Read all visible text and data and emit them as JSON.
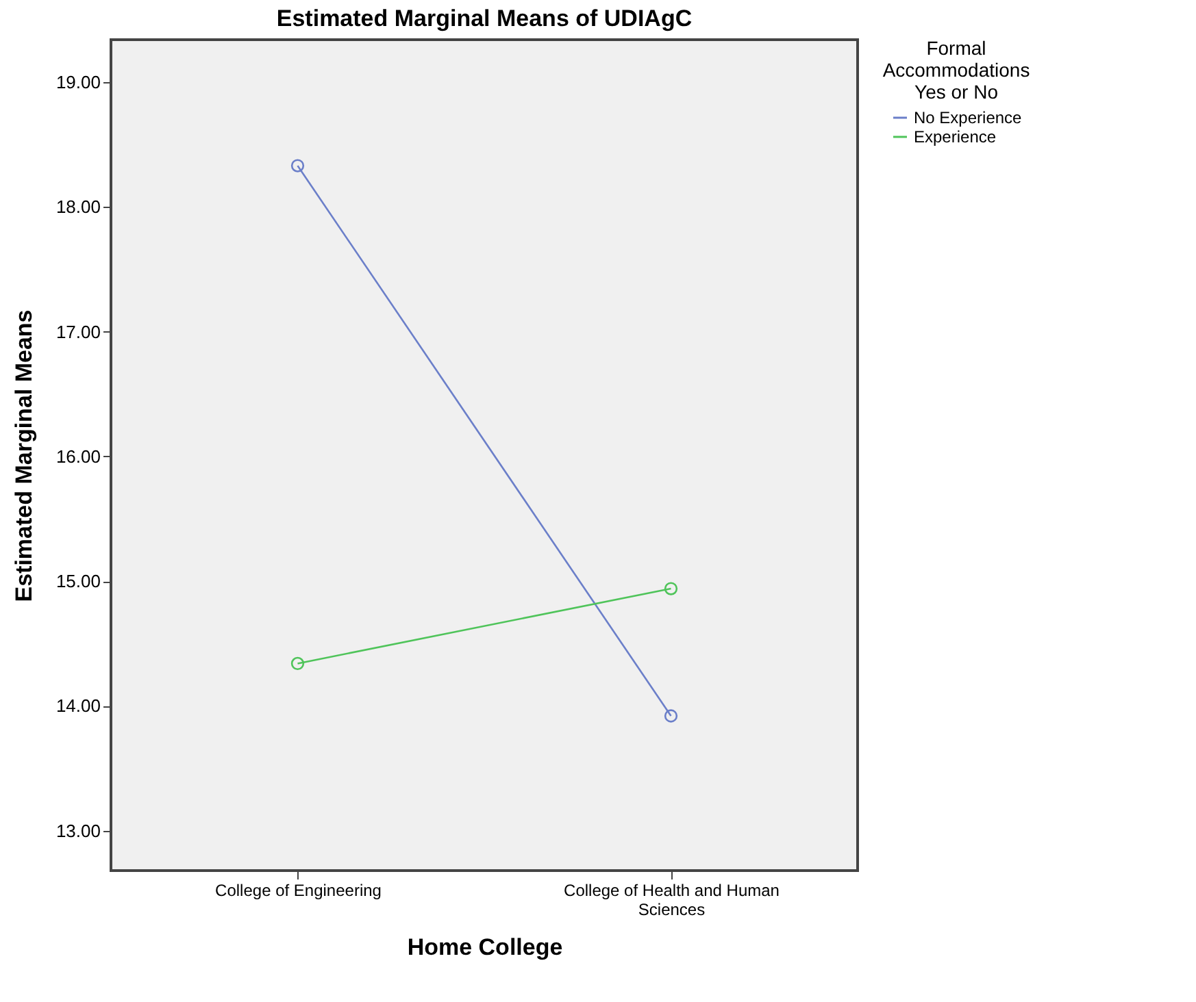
{
  "chart_data": {
    "type": "line",
    "title": "Estimated Marginal Means of UDIAgC",
    "xlabel": "Home College",
    "ylabel": "Estimated Marginal Means",
    "legend_title": "Formal Accommodations Yes or No",
    "categories": [
      "College of Engineering",
      "College of Health and Human Sciences"
    ],
    "series": [
      {
        "name": "No Experience",
        "color": "#6b7fc9",
        "values": [
          18.33,
          13.92
        ]
      },
      {
        "name": "Experience",
        "color": "#4fc45a",
        "values": [
          14.34,
          14.94
        ]
      }
    ],
    "ylim": [
      12.68,
      19.34
    ],
    "yticks": [
      {
        "value": 13,
        "label": "13.00"
      },
      {
        "value": 14,
        "label": "14.00"
      },
      {
        "value": 15,
        "label": "15.00"
      },
      {
        "value": 16,
        "label": "16.00"
      },
      {
        "value": 17,
        "label": "17.00"
      },
      {
        "value": 18,
        "label": "18.00"
      },
      {
        "value": 19,
        "label": "19.00"
      }
    ],
    "grid": false,
    "legend": "top right",
    "marker": "circle",
    "line_style": "solid"
  }
}
